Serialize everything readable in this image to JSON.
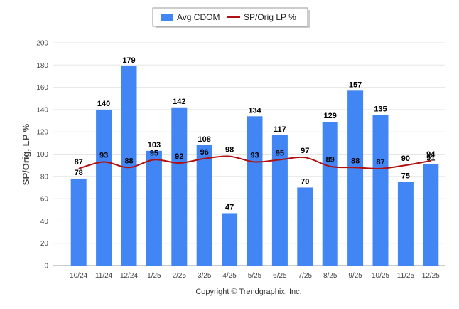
{
  "chart_data": {
    "type": "bar",
    "categories": [
      "10/24",
      "11/24",
      "12/24",
      "1/25",
      "2/25",
      "3/25",
      "4/25",
      "5/25",
      "6/25",
      "7/25",
      "8/25",
      "9/25",
      "10/25",
      "11/25",
      "12/25"
    ],
    "series": [
      {
        "name": "Avg CDOM",
        "type": "bar",
        "color": "#4285f4",
        "values": [
          78,
          140,
          179,
          103,
          142,
          108,
          47,
          134,
          117,
          70,
          129,
          157,
          135,
          75,
          91
        ]
      },
      {
        "name": "SP/Orig LP %",
        "type": "line",
        "color": "#b01010",
        "values": [
          87,
          93,
          88,
          95,
          92,
          96,
          98,
          93,
          95,
          97,
          89,
          88,
          87,
          90,
          94
        ]
      }
    ],
    "ylabel": "SP/Orig, LP %",
    "ylim": [
      0,
      200
    ],
    "yticks": [
      0,
      20,
      40,
      60,
      80,
      100,
      120,
      140,
      160,
      180,
      200
    ],
    "grid": true,
    "legend_position": "top-center"
  },
  "copyright": "Copyright © Trendgraphix, Inc."
}
